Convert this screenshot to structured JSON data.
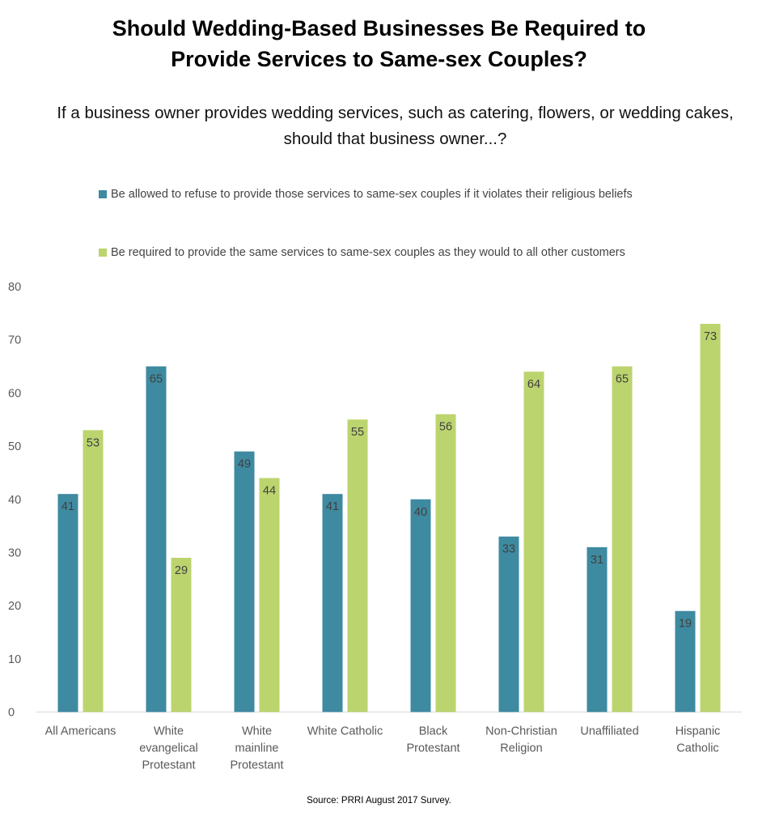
{
  "title_line1": "Should Wedding-Based Businesses Be Required to",
  "title_line2": "Provide Services to Same-sex Couples?",
  "subtitle_line1": "If a business owner provides wedding services, such as catering, flowers, or wedding cakes,",
  "subtitle_line2": "should that business owner...?",
  "source": "Source: PRRI August 2017 Survey.",
  "colors": {
    "series1": "#3e8aa0",
    "series2": "#bcd46e",
    "axis_text": "#595959",
    "label_text": "#404040"
  },
  "chart_data": {
    "type": "bar",
    "ylim": [
      0,
      80
    ],
    "yticks": [
      0,
      10,
      20,
      30,
      40,
      50,
      60,
      70,
      80
    ],
    "grid": false,
    "legend_position": "top",
    "categories": [
      [
        "All Americans"
      ],
      [
        "White",
        "evangelical",
        "Protestant"
      ],
      [
        "White",
        "mainline",
        "Protestant"
      ],
      [
        "White Catholic"
      ],
      [
        "Black",
        "Protestant"
      ],
      [
        "Non-Christian",
        "Religion"
      ],
      [
        "Unaffiliated"
      ],
      [
        "Hispanic",
        "Catholic"
      ]
    ],
    "series": [
      {
        "name": "Be allowed to refuse to provide those services to same-sex couples if it violates their religious beliefs",
        "values": [
          41,
          65,
          49,
          41,
          40,
          33,
          31,
          19
        ]
      },
      {
        "name": "Be required to provide the same services to same-sex couples as they would to all other customers",
        "values": [
          53,
          29,
          44,
          55,
          56,
          64,
          65,
          73
        ]
      }
    ]
  }
}
